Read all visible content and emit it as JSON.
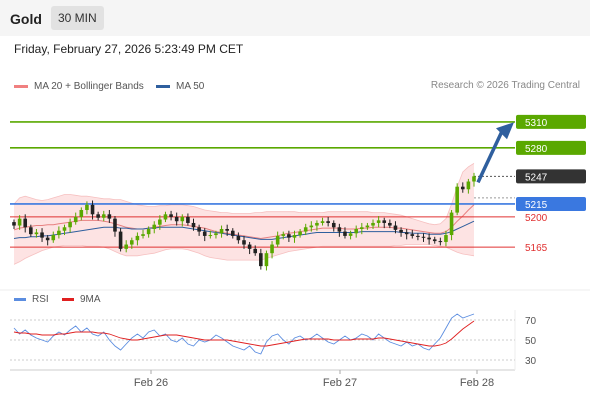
{
  "header": {
    "instrument": "Gold",
    "timeframe": "30 MIN",
    "datetime": "Friday, February 27, 2026 5:23:49 PM CET",
    "credit": "Research © 2026 Trading Central"
  },
  "legend": {
    "bollinger_label": "MA 20 + Bollinger Bands",
    "bollinger_color": "#f08080",
    "ma50_label": "MA 50",
    "ma50_color": "#2f5f9e"
  },
  "rsi_legend": {
    "rsi_label": "RSI",
    "rsi_color": "#5b8de0",
    "ma_label": "9MA",
    "ma_color": "#e02020"
  },
  "chart_data": [
    {
      "type": "candlestick",
      "title": "Gold",
      "xlabel": "",
      "ylabel": "",
      "x_ticks": [
        "Feb 26",
        "Feb 27",
        "Feb 28"
      ],
      "ylim": [
        5120,
        5340
      ],
      "levels": [
        {
          "label": "5310",
          "value": 5310,
          "kind": "resistance",
          "color": "#5aa800"
        },
        {
          "label": "5280",
          "value": 5280,
          "kind": "resistance",
          "color": "#5aa800"
        },
        {
          "label": "5247",
          "value": 5247,
          "kind": "last",
          "color": "#333333"
        },
        {
          "label": "5215",
          "value": 5215,
          "kind": "pivot",
          "color": "#3a78e0"
        },
        {
          "label": "5200",
          "value": 5200,
          "kind": "support",
          "color": "#e03030"
        },
        {
          "label": "5165",
          "value": 5165,
          "kind": "support",
          "color": "#e03030"
        }
      ],
      "forecast_arrow": {
        "from": 5240,
        "to": 5305,
        "direction": "up",
        "color": "#2f5f9e"
      },
      "close_series": [
        5190,
        5198,
        5188,
        5180,
        5182,
        5176,
        5173,
        5179,
        5184,
        5188,
        5194,
        5200,
        5208,
        5214,
        5203,
        5199,
        5203,
        5198,
        5183,
        5163,
        5168,
        5173,
        5178,
        5180,
        5186,
        5191,
        5197,
        5203,
        5200,
        5195,
        5200,
        5193,
        5188,
        5183,
        5178,
        5179,
        5181,
        5186,
        5184,
        5178,
        5173,
        5168,
        5163,
        5158,
        5143,
        5158,
        5168,
        5178,
        5180,
        5176,
        5179,
        5183,
        5188,
        5190,
        5193,
        5195,
        5193,
        5188,
        5183,
        5178,
        5181,
        5186,
        5188,
        5190,
        5193,
        5196,
        5193,
        5190,
        5185,
        5182,
        5180,
        5178,
        5177,
        5176,
        5174,
        5172,
        5171,
        5179,
        5205,
        5235,
        5232,
        5241,
        5247
      ],
      "ma50": [
        5175,
        5176,
        5176,
        5177,
        5177,
        5178,
        5178,
        5179,
        5180,
        5181,
        5182,
        5183,
        5184,
        5185,
        5186,
        5187,
        5188,
        5188,
        5188,
        5187,
        5187,
        5186,
        5186,
        5186,
        5187,
        5187,
        5188,
        5188,
        5188,
        5188,
        5188,
        5187,
        5186,
        5185,
        5184,
        5183,
        5182,
        5181,
        5180,
        5179,
        5178,
        5177,
        5176,
        5175,
        5174,
        5174,
        5174,
        5175,
        5176,
        5177,
        5178,
        5179,
        5180,
        5181,
        5182,
        5182,
        5182,
        5182,
        5182,
        5182,
        5182,
        5182,
        5183,
        5183,
        5183,
        5183,
        5183,
        5183,
        5183,
        5182,
        5182,
        5181,
        5181,
        5181,
        5180,
        5180,
        5180,
        5181,
        5183,
        5186,
        5189,
        5192,
        5195
      ],
      "ma20": [
        5185,
        5187,
        5188,
        5189,
        5190,
        5190,
        5191,
        5191,
        5192,
        5193,
        5194,
        5195,
        5196,
        5196,
        5196,
        5196,
        5195,
        5194,
        5192,
        5190,
        5188,
        5187,
        5186,
        5186,
        5187,
        5188,
        5189,
        5190,
        5191,
        5191,
        5191,
        5190,
        5189,
        5188,
        5187,
        5185,
        5183,
        5182,
        5181,
        5180,
        5179,
        5178,
        5177,
        5176,
        5175,
        5176,
        5177,
        5178,
        5180,
        5181,
        5182,
        5183,
        5184,
        5185,
        5186,
        5187,
        5187,
        5187,
        5187,
        5186,
        5186,
        5186,
        5187,
        5187,
        5188,
        5188,
        5188,
        5188,
        5187,
        5187,
        5186,
        5185,
        5184,
        5183,
        5182,
        5181,
        5181,
        5183,
        5188,
        5195,
        5201,
        5208,
        5214
      ],
      "bb_upper": [
        5215,
        5222,
        5224,
        5222,
        5220,
        5219,
        5220,
        5222,
        5224,
        5226,
        5226,
        5225,
        5224,
        5224,
        5223,
        5222,
        5221,
        5221,
        5220,
        5220,
        5218,
        5216,
        5214,
        5213,
        5212,
        5212,
        5213,
        5213,
        5214,
        5214,
        5214,
        5213,
        5212,
        5210,
        5208,
        5207,
        5206,
        5205,
        5205,
        5204,
        5204,
        5204,
        5204,
        5205,
        5205,
        5206,
        5206,
        5206,
        5206,
        5206,
        5206,
        5205,
        5205,
        5205,
        5205,
        5205,
        5206,
        5206,
        5206,
        5206,
        5206,
        5206,
        5206,
        5206,
        5205,
        5205,
        5205,
        5204,
        5203,
        5202,
        5200,
        5198,
        5196,
        5194,
        5192,
        5191,
        5192,
        5198,
        5215,
        5235,
        5252,
        5258,
        5262
      ],
      "bb_lower": [
        5145,
        5148,
        5152,
        5155,
        5158,
        5161,
        5163,
        5165,
        5166,
        5167,
        5167,
        5167,
        5167,
        5166,
        5166,
        5166,
        5165,
        5163,
        5160,
        5157,
        5155,
        5155,
        5155,
        5156,
        5157,
        5158,
        5160,
        5162,
        5163,
        5163,
        5163,
        5162,
        5160,
        5158,
        5155,
        5153,
        5152,
        5151,
        5150,
        5150,
        5150,
        5150,
        5150,
        5150,
        5150,
        5152,
        5154,
        5156,
        5158,
        5160,
        5161,
        5162,
        5163,
        5164,
        5165,
        5166,
        5166,
        5166,
        5166,
        5166,
        5166,
        5166,
        5166,
        5166,
        5166,
        5166,
        5166,
        5166,
        5167,
        5167,
        5168,
        5168,
        5168,
        5168,
        5168,
        5167,
        5166,
        5165,
        5162,
        5159,
        5157,
        5156,
        5155
      ]
    },
    {
      "type": "line",
      "title": "RSI",
      "ylim": [
        20,
        80
      ],
      "y_ticks": [
        "70",
        "50",
        "30"
      ],
      "series": [
        {
          "name": "RSI",
          "values": [
            62,
            56,
            60,
            55,
            52,
            50,
            48,
            54,
            58,
            55,
            60,
            64,
            58,
            62,
            56,
            54,
            58,
            50,
            44,
            40,
            46,
            52,
            56,
            52,
            58,
            60,
            54,
            56,
            50,
            48,
            52,
            46,
            44,
            50,
            48,
            50,
            55,
            52,
            48,
            44,
            42,
            40,
            44,
            38,
            36,
            48,
            54,
            56,
            50,
            46,
            52,
            54,
            50,
            52,
            56,
            52,
            48,
            46,
            50,
            54,
            50,
            52,
            56,
            54,
            50,
            56,
            52,
            48,
            46,
            44,
            48,
            44,
            46,
            42,
            40,
            46,
            52,
            62,
            72,
            76,
            72,
            74,
            76
          ]
        },
        {
          "name": "9MA",
          "values": [
            58,
            57,
            57,
            56,
            56,
            55,
            55,
            55,
            56,
            56,
            57,
            58,
            58,
            58,
            58,
            57,
            57,
            56,
            54,
            52,
            51,
            50,
            50,
            51,
            52,
            53,
            54,
            55,
            55,
            55,
            54,
            53,
            52,
            51,
            50,
            50,
            50,
            50,
            50,
            49,
            48,
            47,
            46,
            45,
            44,
            44,
            45,
            46,
            47,
            48,
            49,
            50,
            51,
            51,
            51,
            51,
            51,
            50,
            50,
            50,
            50,
            51,
            51,
            51,
            51,
            52,
            52,
            51,
            50,
            49,
            48,
            47,
            46,
            45,
            44,
            44,
            45,
            47,
            51,
            56,
            61,
            65,
            69
          ]
        }
      ]
    }
  ]
}
